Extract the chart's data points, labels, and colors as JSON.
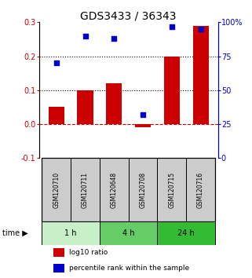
{
  "title": "GDS3433 / 36343",
  "samples": [
    "GSM120710",
    "GSM120711",
    "GSM120648",
    "GSM120708",
    "GSM120715",
    "GSM120716"
  ],
  "log10_ratio": [
    0.05,
    0.1,
    0.12,
    -0.01,
    0.2,
    0.29
  ],
  "percentile_rank": [
    70,
    90,
    88,
    32,
    97,
    95
  ],
  "bar_color": "#cc0000",
  "square_color": "#0000cc",
  "left_ylim": [
    -0.1,
    0.3
  ],
  "right_ylim": [
    0,
    100
  ],
  "left_yticks": [
    -0.1,
    0.0,
    0.1,
    0.2,
    0.3
  ],
  "right_yticks": [
    0,
    25,
    50,
    75,
    100
  ],
  "right_yticklabels": [
    "0",
    "25",
    "50",
    "75",
    "100%"
  ],
  "hlines_dotted": [
    0.1,
    0.2
  ],
  "hline_dashed": 0.0,
  "time_groups": [
    {
      "label": "1 h",
      "start": 0,
      "end": 2,
      "color": "#c8f0c8"
    },
    {
      "label": "4 h",
      "start": 2,
      "end": 4,
      "color": "#66cc66"
    },
    {
      "label": "24 h",
      "start": 4,
      "end": 6,
      "color": "#33bb33"
    }
  ],
  "legend_red": "log10 ratio",
  "legend_blue": "percentile rank within the sample",
  "title_fontsize": 10,
  "tick_fontsize": 7,
  "sample_fontsize": 5.5,
  "time_fontsize": 7,
  "legend_fontsize": 6.5
}
